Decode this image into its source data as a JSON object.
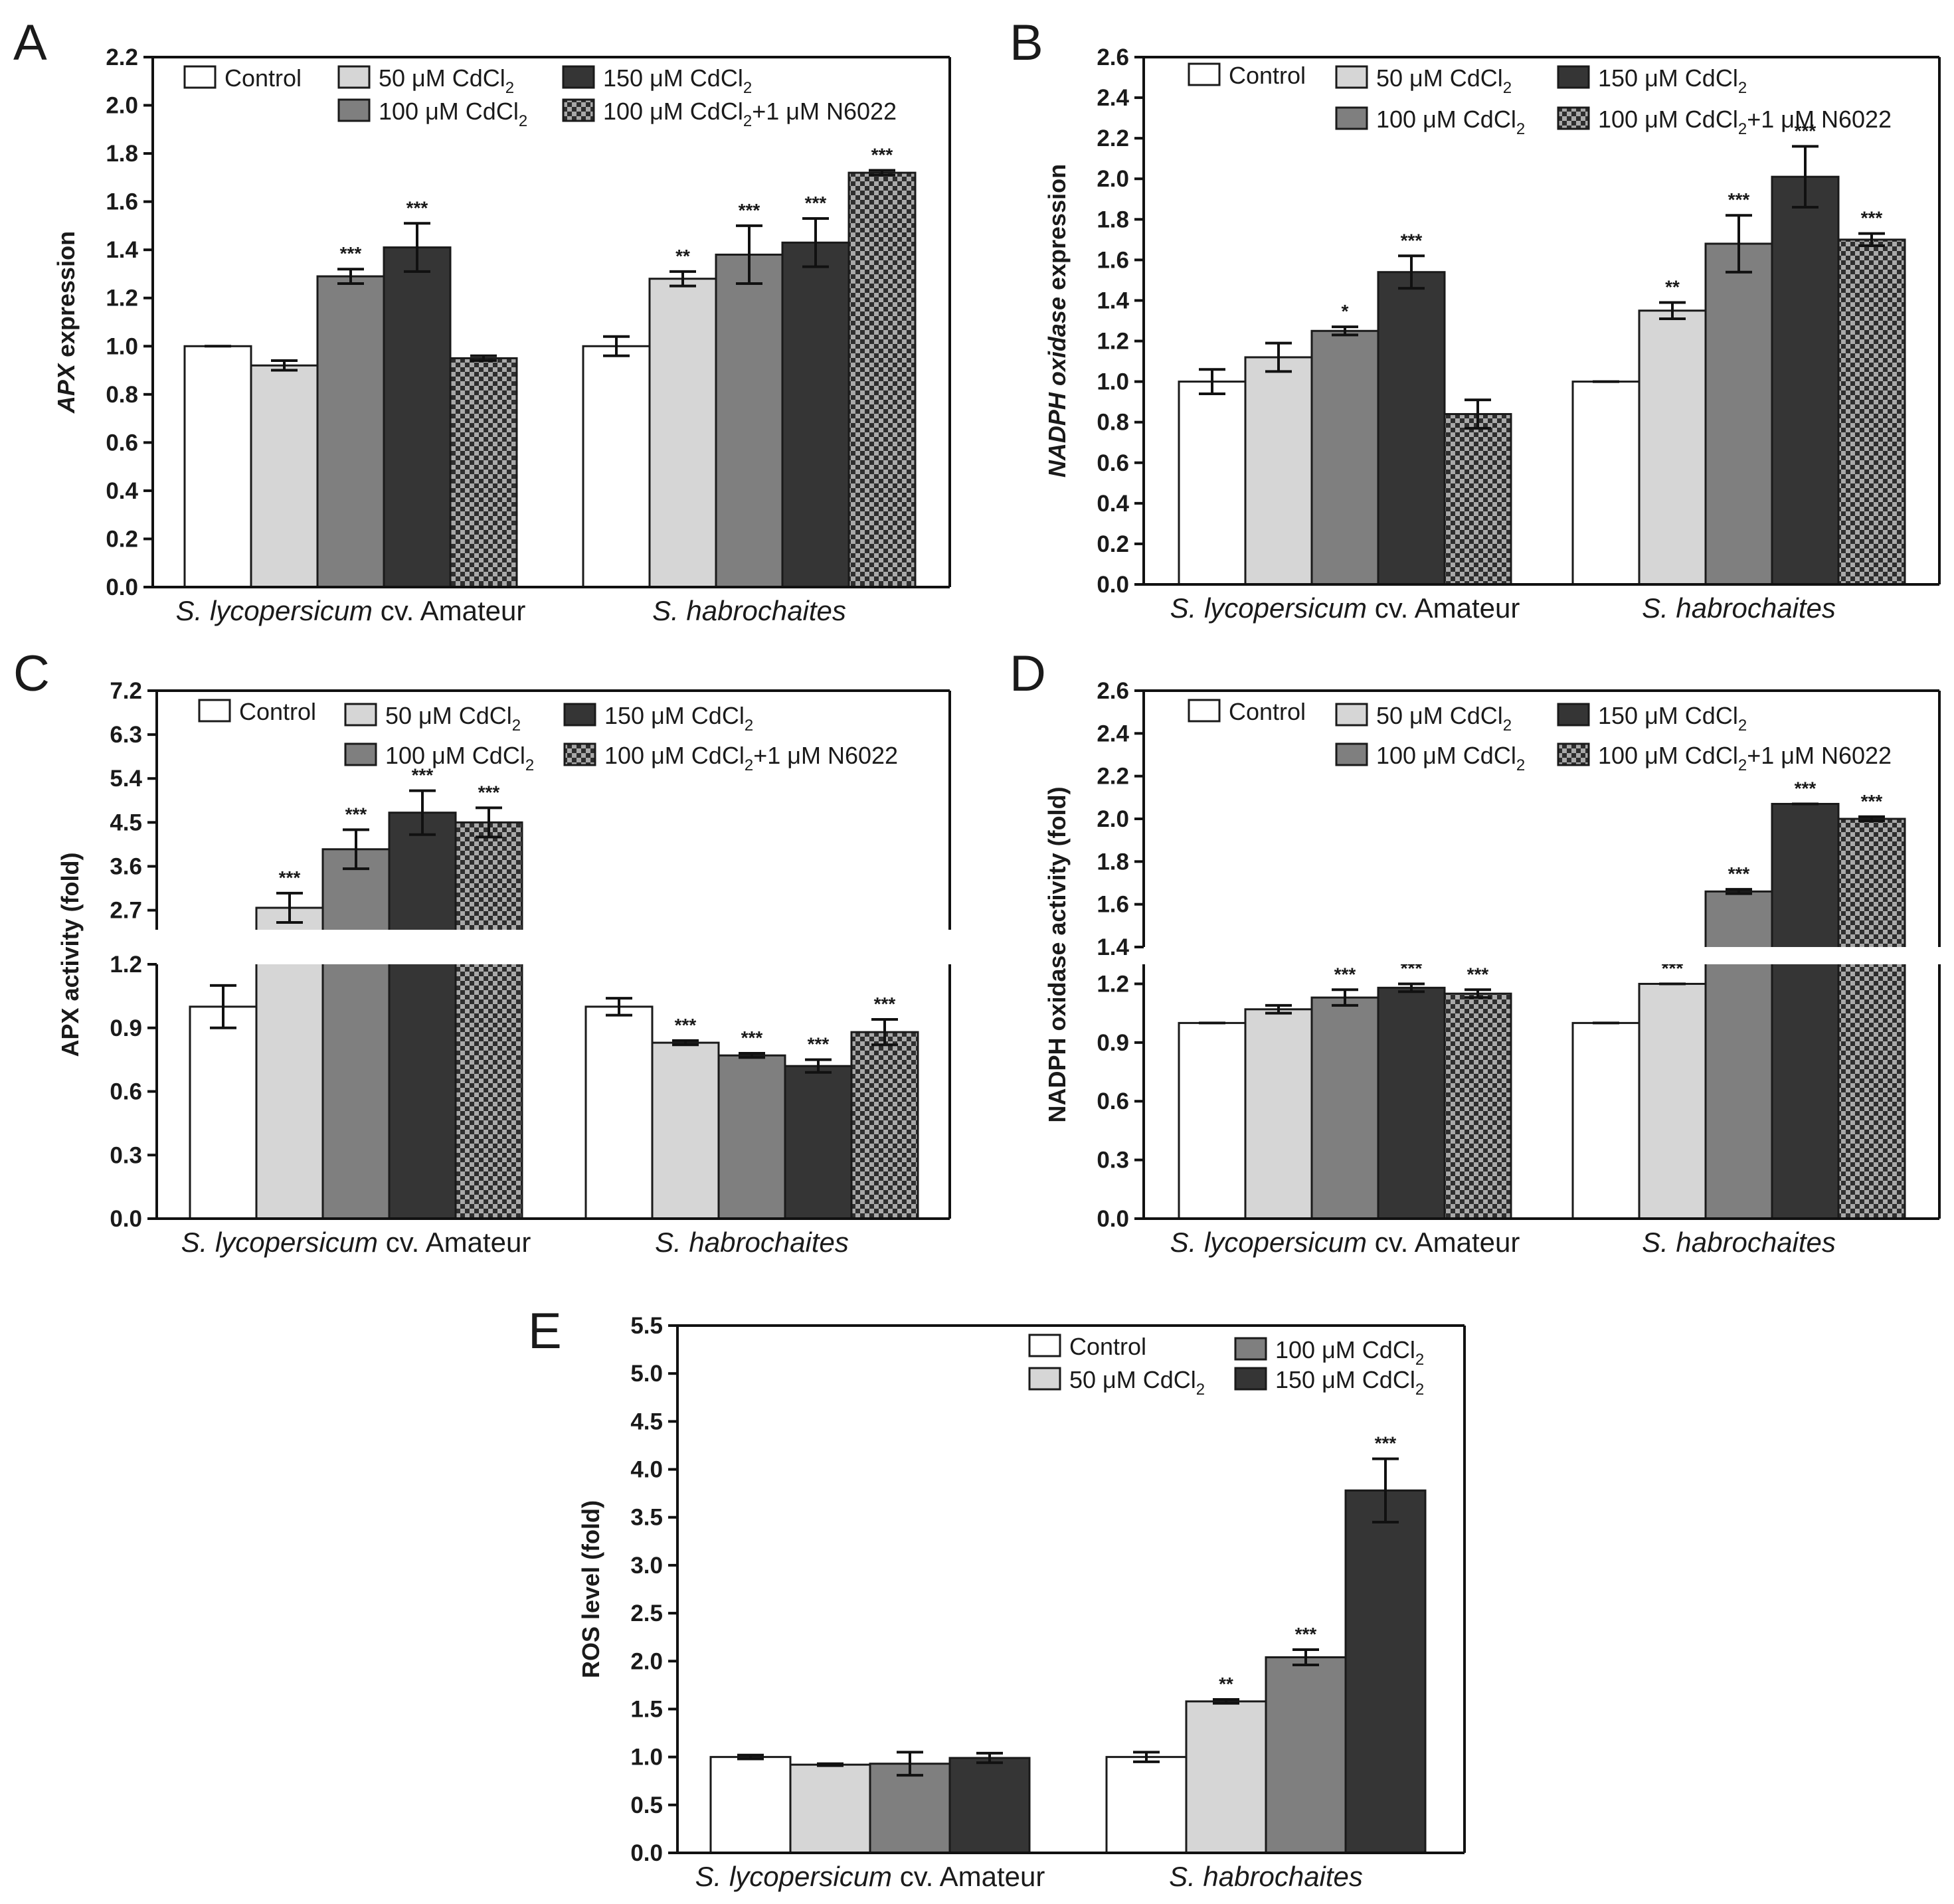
{
  "figure": {
    "series_defs": {
      "control": {
        "fill": "#ffffff",
        "label": "Control"
      },
      "cd50": {
        "fill": "#d6d6d6",
        "label": "50 μM CdCl",
        "sub": "2"
      },
      "cd100": {
        "fill": "#7f7f7f",
        "label": "100 μM CdCl",
        "sub": "2"
      },
      "cd150": {
        "fill": "#353535",
        "label": "150 μM CdCl",
        "sub": "2"
      },
      "n6022": {
        "fill": "pattern",
        "label": "100 μM CdCl",
        "sub": "2",
        "suffix": "+1 μM N6022"
      }
    },
    "groups": [
      {
        "italic": "S. lycopersicum",
        "plain": " cv. Amateur"
      },
      {
        "italic": "S. habrochaites",
        "plain": ""
      }
    ]
  },
  "chart_data": [
    {
      "panel": "A",
      "type": "bar",
      "ylabel_italic": "APX",
      "ylabel_plain": " expression",
      "ylim": [
        0,
        2.2
      ],
      "ticks": [
        "0.0",
        "0.2",
        "0.4",
        "0.6",
        "0.8",
        "1.0",
        "1.2",
        "1.4",
        "1.6",
        "1.8",
        "2.0",
        "2.2"
      ],
      "categories": [
        "S. lycopersicum cv. Amateur",
        "S. habrochaites"
      ],
      "series": [
        {
          "key": "control",
          "name": "Control",
          "values": [
            1.0,
            1.0
          ],
          "err": [
            0.0,
            0.04
          ],
          "sig": [
            "",
            ""
          ]
        },
        {
          "key": "cd50",
          "name": "50 μM CdCl2",
          "values": [
            0.92,
            1.28
          ],
          "err": [
            0.02,
            0.03
          ],
          "sig": [
            "",
            "**"
          ]
        },
        {
          "key": "cd100",
          "name": "100 μM CdCl2",
          "values": [
            1.29,
            1.38
          ],
          "err": [
            0.03,
            0.12
          ],
          "sig": [
            "***",
            "***"
          ]
        },
        {
          "key": "cd150",
          "name": "150 μM CdCl2",
          "values": [
            1.41,
            1.43
          ],
          "err": [
            0.1,
            0.1
          ],
          "sig": [
            "***",
            "***"
          ]
        },
        {
          "key": "n6022",
          "name": "100 μM CdCl2+1 μM N6022",
          "values": [
            0.95,
            1.72
          ],
          "err": [
            0.01,
            0.01
          ],
          "sig": [
            "",
            "***"
          ]
        }
      ]
    },
    {
      "panel": "B",
      "type": "bar",
      "ylabel_italic": "NADPH oxidase",
      "ylabel_plain": " expression",
      "ylim": [
        0,
        2.6
      ],
      "ticks": [
        "0.0",
        "0.2",
        "0.4",
        "0.6",
        "0.8",
        "1.0",
        "1.2",
        "1.4",
        "1.6",
        "1.8",
        "2.0",
        "2.2",
        "2.4",
        "2.6"
      ],
      "categories": [
        "S. lycopersicum cv. Amateur",
        "S. habrochaites"
      ],
      "series": [
        {
          "key": "control",
          "name": "Control",
          "values": [
            1.0,
            1.0
          ],
          "err": [
            0.06,
            0.0
          ],
          "sig": [
            "",
            ""
          ]
        },
        {
          "key": "cd50",
          "name": "50 μM CdCl2",
          "values": [
            1.12,
            1.35
          ],
          "err": [
            0.07,
            0.04
          ],
          "sig": [
            "",
            "**"
          ]
        },
        {
          "key": "cd100",
          "name": "100 μM CdCl2",
          "values": [
            1.25,
            1.68
          ],
          "err": [
            0.02,
            0.14
          ],
          "sig": [
            "*",
            "***"
          ]
        },
        {
          "key": "cd150",
          "name": "150 μM CdCl2",
          "values": [
            1.54,
            2.01
          ],
          "err": [
            0.08,
            0.15
          ],
          "sig": [
            "***",
            "***"
          ]
        },
        {
          "key": "n6022",
          "name": "100 μM CdCl2+1 μM N6022",
          "values": [
            0.84,
            1.7
          ],
          "err": [
            0.07,
            0.03
          ],
          "sig": [
            "",
            "***"
          ]
        }
      ]
    },
    {
      "panel": "C",
      "type": "bar",
      "broken_axis": true,
      "ylabel_plain": "APX activity (fold)",
      "lower_range": [
        0,
        1.2
      ],
      "upper_range": [
        2.3,
        7.2
      ],
      "lower_ticks": [
        "0.0",
        "0.3",
        "0.6",
        "0.9",
        "1.2"
      ],
      "upper_ticks": [
        "2.7",
        "3.6",
        "4.5",
        "5.4",
        "6.3",
        "7.2"
      ],
      "categories": [
        "S. lycopersicum cv. Amateur",
        "S. habrochaites"
      ],
      "series": [
        {
          "key": "control",
          "name": "Control",
          "values": [
            1.0,
            1.0
          ],
          "err": [
            0.1,
            0.04
          ],
          "sig": [
            "",
            ""
          ]
        },
        {
          "key": "cd50",
          "name": "50 μM CdCl2",
          "values": [
            2.75,
            0.83
          ],
          "err": [
            0.3,
            0.01
          ],
          "sig": [
            "***",
            "***"
          ]
        },
        {
          "key": "cd100",
          "name": "100 μM CdCl2",
          "values": [
            3.95,
            0.77
          ],
          "err": [
            0.4,
            0.01
          ],
          "sig": [
            "***",
            "***"
          ]
        },
        {
          "key": "cd150",
          "name": "150 μM CdCl2",
          "values": [
            4.7,
            0.72
          ],
          "err": [
            0.45,
            0.03
          ],
          "sig": [
            "***",
            "***"
          ]
        },
        {
          "key": "n6022",
          "name": "100 μM CdCl2+1 μM N6022",
          "values": [
            4.5,
            0.88
          ],
          "err": [
            0.3,
            0.06
          ],
          "sig": [
            "***",
            "***"
          ]
        }
      ]
    },
    {
      "panel": "D",
      "type": "bar",
      "broken_axis": true,
      "ylabel_plain": "NADPH oxidase activity (fold)",
      "lower_range": [
        0,
        1.3
      ],
      "upper_range": [
        1.4,
        2.6
      ],
      "lower_ticks": [
        "0.0",
        "0.3",
        "0.6",
        "0.9",
        "1.2"
      ],
      "upper_ticks": [
        "1.4",
        "1.6",
        "1.8",
        "2.0",
        "2.2",
        "2.4",
        "2.6"
      ],
      "categories": [
        "S. lycopersicum cv. Amateur",
        "S. habrochaites"
      ],
      "series": [
        {
          "key": "control",
          "name": "Control",
          "values": [
            1.0,
            1.0
          ],
          "err": [
            0.0,
            0.0
          ],
          "sig": [
            "",
            ""
          ]
        },
        {
          "key": "cd50",
          "name": "50 μM CdCl2",
          "values": [
            1.07,
            1.2
          ],
          "err": [
            0.02,
            0.0
          ],
          "sig": [
            "",
            "***"
          ]
        },
        {
          "key": "cd100",
          "name": "100 μM CdCl2",
          "values": [
            1.13,
            1.66
          ],
          "err": [
            0.04,
            0.01
          ],
          "sig": [
            "***",
            "***"
          ]
        },
        {
          "key": "cd150",
          "name": "150 μM CdCl2",
          "values": [
            1.18,
            2.07
          ],
          "err": [
            0.02,
            0.0
          ],
          "sig": [
            "***",
            "***"
          ]
        },
        {
          "key": "n6022",
          "name": "100 μM CdCl2+1 μM N6022",
          "values": [
            1.15,
            2.0
          ],
          "err": [
            0.02,
            0.01
          ],
          "sig": [
            "***",
            "***"
          ]
        }
      ]
    },
    {
      "panel": "E",
      "type": "bar",
      "ylabel_plain": "ROS level (fold)",
      "ylim": [
        0,
        5.5
      ],
      "ticks": [
        "0.0",
        "0.5",
        "1.0",
        "1.5",
        "2.0",
        "2.5",
        "3.0",
        "3.5",
        "4.0",
        "4.5",
        "5.0",
        "5.5"
      ],
      "categories": [
        "S. lycopersicum cv. Amateur",
        "S. habrochaites"
      ],
      "series": [
        {
          "key": "control",
          "name": "Control",
          "values": [
            1.0,
            1.0
          ],
          "err": [
            0.02,
            0.05
          ],
          "sig": [
            "",
            ""
          ]
        },
        {
          "key": "cd50",
          "name": "50 μM CdCl2",
          "values": [
            0.92,
            1.58
          ],
          "err": [
            0.01,
            0.02
          ],
          "sig": [
            "",
            "**"
          ]
        },
        {
          "key": "cd100",
          "name": "100 μM CdCl2",
          "values": [
            0.93,
            2.04
          ],
          "err": [
            0.12,
            0.08
          ],
          "sig": [
            "",
            "***"
          ]
        },
        {
          "key": "cd150",
          "name": "150 μM CdCl2",
          "values": [
            0.99,
            3.78
          ],
          "err": [
            0.05,
            0.33
          ],
          "sig": [
            "",
            "***"
          ]
        }
      ]
    }
  ]
}
